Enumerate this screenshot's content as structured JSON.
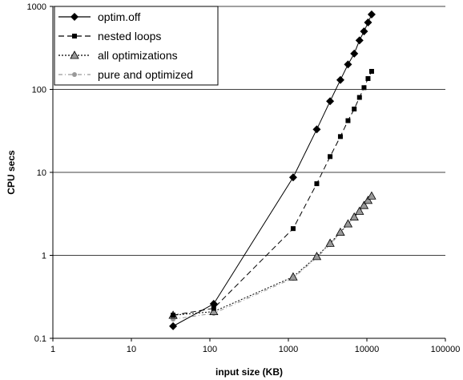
{
  "chart_data": {
    "type": "line",
    "xlabel": "input size (KB)",
    "ylabel": "CPU secs",
    "x_scale": "log",
    "y_scale": "log",
    "xlim": [
      1,
      100000
    ],
    "ylim": [
      0.1,
      1000
    ],
    "x_ticks": [
      "1",
      "10",
      "100",
      "1000",
      "10000",
      "100000"
    ],
    "y_ticks": [
      "0.1",
      "1",
      "10",
      "100",
      "1000"
    ],
    "grid": "horizontal major",
    "legend_position": "top-left",
    "series": [
      {
        "name": "optim.off",
        "line_style": "solid",
        "marker": "diamond",
        "color": "#000000",
        "x": [
          34,
          112,
          1150,
          2300,
          3400,
          4600,
          5750,
          6900,
          8050,
          9200,
          10350,
          11500
        ],
        "y": [
          0.14,
          0.26,
          8.7,
          33,
          72,
          130,
          200,
          270,
          390,
          500,
          640,
          800
        ]
      },
      {
        "name": "nested loops",
        "line_style": "dashed",
        "marker": "square",
        "color": "#000000",
        "x": [
          34,
          112,
          1150,
          2300,
          3400,
          4600,
          5750,
          6900,
          8050,
          9200,
          10350,
          11500
        ],
        "y": [
          0.19,
          0.23,
          2.1,
          7.3,
          15.5,
          27,
          42,
          58,
          80,
          105,
          135,
          165
        ]
      },
      {
        "name": "all optimizations",
        "line_style": "dotted",
        "marker": "triangle",
        "color": "#000000",
        "x": [
          34,
          112,
          1150,
          2300,
          3400,
          4600,
          5750,
          6900,
          8050,
          9200,
          10350,
          11500
        ],
        "y": [
          0.19,
          0.21,
          0.55,
          0.97,
          1.4,
          1.9,
          2.4,
          2.9,
          3.4,
          4.0,
          4.6,
          5.2
        ]
      },
      {
        "name": "pure and optimized",
        "line_style": "dash-dot",
        "marker": "circle",
        "color": "#999999",
        "x": [
          34,
          112,
          1150,
          2300,
          3400,
          4600,
          5750,
          6900,
          8050,
          9200,
          10350,
          11500
        ],
        "y": [
          0.17,
          0.2,
          0.53,
          0.94,
          1.35,
          1.85,
          2.35,
          2.85,
          3.35,
          3.9,
          4.5,
          5.1
        ]
      }
    ]
  }
}
